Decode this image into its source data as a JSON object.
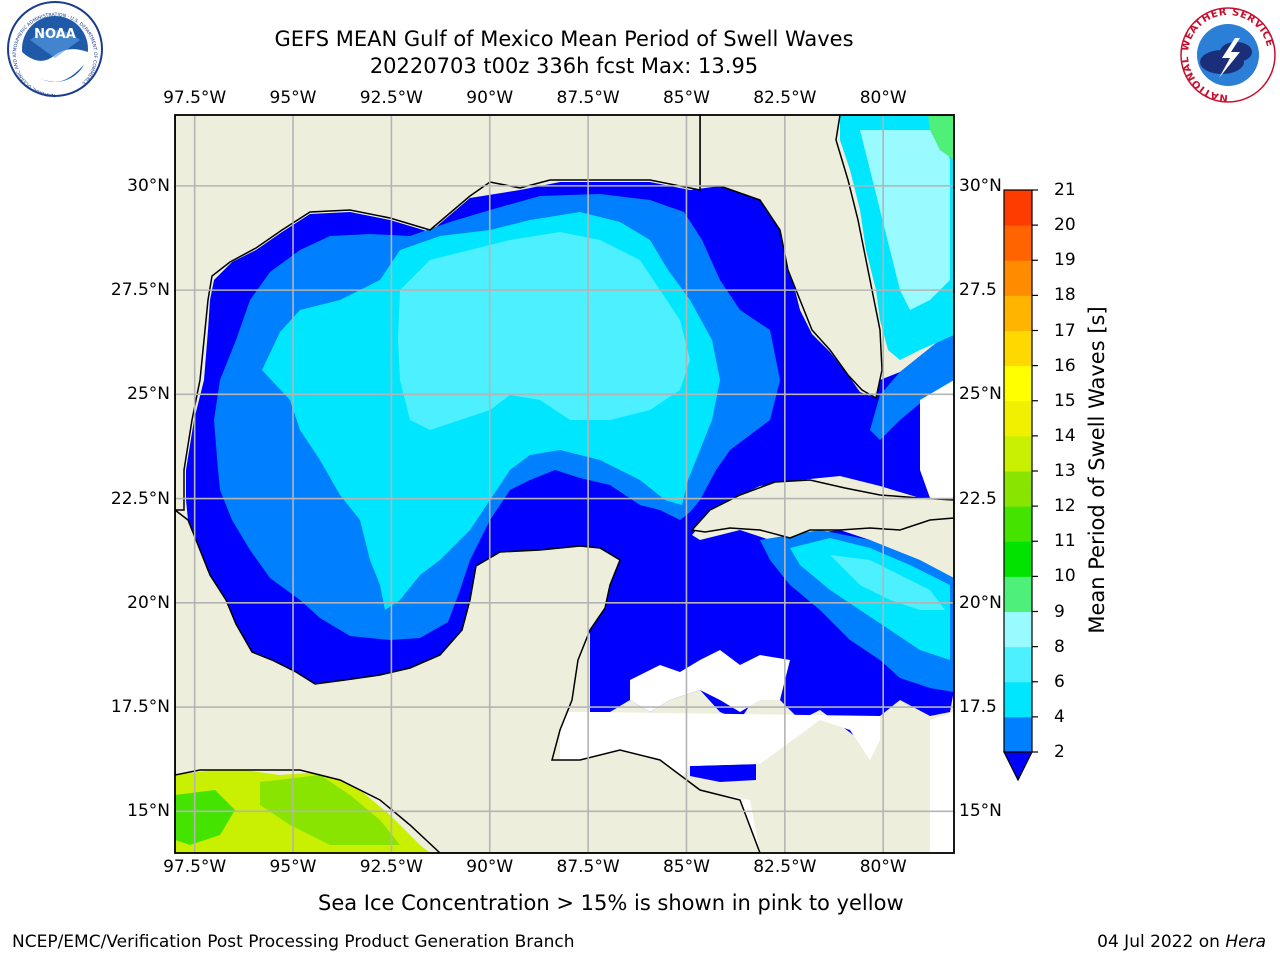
{
  "title_line1": "GEFS MEAN Gulf of Mexico Mean Period of Swell Waves",
  "title_line2": "20220703 t00z 336h fcst   Max: 13.95",
  "map": {
    "lon_labels": [
      "97.5°W",
      "95°W",
      "92.5°W",
      "90°W",
      "87.5°W",
      "85°W",
      "82.5°W",
      "80°W"
    ],
    "lon_values": [
      -97.5,
      -95,
      -92.5,
      -90,
      -87.5,
      -85,
      -82.5,
      -80
    ],
    "lat_labels_left": [
      "30°N",
      "27.5°N",
      "25°N",
      "22.5°N",
      "20°N",
      "17.5°N",
      "15°N"
    ],
    "lat_labels_right": [
      "30°N",
      "27.5",
      "25°N",
      "22.5",
      "20°N",
      "17.5",
      "15°N"
    ],
    "lat_values": [
      30,
      27.5,
      25,
      22.5,
      20,
      17.5,
      15
    ],
    "lon_range": [
      -98,
      -78.2
    ],
    "lat_range": [
      14,
      31.7
    ],
    "land_color": "#eeeedc",
    "grid_color": "#b4b4b4"
  },
  "colorbar": {
    "label": "Mean Period of Swell Waves [s]",
    "ticks": [
      "2",
      "4",
      "6",
      "8",
      "9",
      "10",
      "11",
      "12",
      "13",
      "14",
      "15",
      "16",
      "17",
      "18",
      "19",
      "20",
      "21"
    ],
    "levels": [
      2,
      4,
      6,
      8,
      9,
      10,
      11,
      12,
      13,
      14,
      15,
      16,
      17,
      18,
      19,
      20,
      21
    ],
    "colors": [
      "#0080ff",
      "#00e6ff",
      "#4df0ff",
      "#99fbff",
      "#4ff07a",
      "#00e400",
      "#44e400",
      "#88e400",
      "#c8f000",
      "#f0f000",
      "#ffff00",
      "#ffd800",
      "#ffb400",
      "#ff8c00",
      "#ff6400",
      "#ff3c00",
      "#ff0000"
    ],
    "under_color": "#0000ff"
  },
  "ice_note": "Sea Ice Concentration > 15% is shown in pink to yellow",
  "footer": {
    "left": "NCEP/EMC/Verification Post Processing Product Generation Branch",
    "date": "04 Jul 2022 on ",
    "host": "Hera"
  },
  "logos": {
    "noaa_text": "NOAA",
    "noaa_ring": "NATIONAL OCEANIC AND ATMOSPHERIC ADMINISTRATION · U.S. DEPARTMENT OF COMMERCE",
    "nws_ring": "NATIONAL WEATHER SERVICE"
  }
}
